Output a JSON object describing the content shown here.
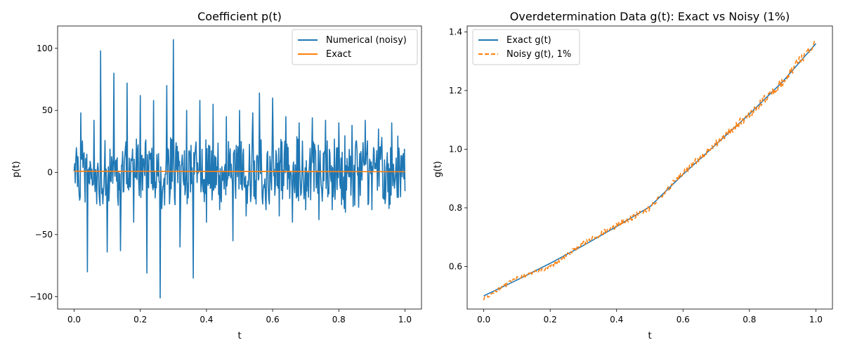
{
  "chart_data": [
    {
      "type": "line",
      "title": "Coefficient p(t)",
      "xlabel": "t",
      "ylabel": "p(t)",
      "xlim": [
        -0.05,
        1.05
      ],
      "ylim": [
        -110,
        118
      ],
      "xticks": [
        0.0,
        0.2,
        0.4,
        0.6,
        0.8,
        1.0
      ],
      "xtick_labels": [
        "0.0",
        "0.2",
        "0.4",
        "0.6",
        "0.8",
        "1.0"
      ],
      "yticks": [
        -100,
        -50,
        0,
        50,
        100
      ],
      "ytick_labels": [
        "−100",
        "−50",
        "0",
        "50",
        "100"
      ],
      "legend_position": "top-right",
      "series": [
        {
          "name": "Numerical (noisy)",
          "color": "#1f77b4",
          "style": "solid",
          "description_values": "noisy oscillation around 0, mostly within ±45, spikes up to 107 and down to -101",
          "x": [
            0.0,
            0.02,
            0.04,
            0.06,
            0.08,
            0.1,
            0.12,
            0.14,
            0.16,
            0.18,
            0.2,
            0.22,
            0.24,
            0.26,
            0.28,
            0.3,
            0.32,
            0.34,
            0.36,
            0.38,
            0.4,
            0.42,
            0.44,
            0.46,
            0.48,
            0.5,
            0.52,
            0.54,
            0.56,
            0.58,
            0.6,
            0.62,
            0.64,
            0.66,
            0.68,
            0.7,
            0.72,
            0.74,
            0.76,
            0.78,
            0.8,
            0.82,
            0.84,
            0.86,
            0.88,
            0.9,
            0.92,
            0.94,
            0.96,
            0.98,
            1.0
          ],
          "y": [
            1,
            48,
            -80,
            42,
            98,
            -64,
            80,
            -63,
            72,
            -40,
            62,
            -81,
            58,
            -101,
            70,
            107,
            -60,
            50,
            -85,
            58,
            -40,
            55,
            -30,
            45,
            -55,
            50,
            -35,
            48,
            64,
            -30,
            60,
            -35,
            45,
            -40,
            40,
            -30,
            44,
            -38,
            42,
            -30,
            40,
            -32,
            38,
            -28,
            42,
            -30,
            35,
            -25,
            40,
            -20,
            -15
          ]
        },
        {
          "name": "Exact",
          "color": "#ff7f0e",
          "style": "solid",
          "x": [
            0.0,
            0.25,
            0.5,
            0.75,
            1.0
          ],
          "y": [
            1.0,
            0.9,
            0.8,
            0.7,
            0.6
          ]
        }
      ]
    },
    {
      "type": "line",
      "title": "Overdetermination Data g(t): Exact vs Noisy (1%)",
      "xlabel": "t",
      "ylabel": "g(t)",
      "xlim": [
        -0.05,
        1.05
      ],
      "ylim": [
        0.455,
        1.42
      ],
      "xticks": [
        0.0,
        0.2,
        0.4,
        0.6,
        0.8,
        1.0
      ],
      "xtick_labels": [
        "0.0",
        "0.2",
        "0.4",
        "0.6",
        "0.8",
        "1.0"
      ],
      "yticks": [
        0.6,
        0.8,
        1.0,
        1.2,
        1.4
      ],
      "ytick_labels": [
        "0.6",
        "0.8",
        "1.0",
        "1.2",
        "1.4"
      ],
      "legend_position": "top-left",
      "series": [
        {
          "name": "Exact g(t)",
          "color": "#1f77b4",
          "style": "solid",
          "x": [
            0.0,
            0.1,
            0.2,
            0.3,
            0.4,
            0.5,
            0.6,
            0.7,
            0.8,
            0.9,
            1.0
          ],
          "y": [
            0.5,
            0.554,
            0.611,
            0.672,
            0.736,
            0.804,
            0.914,
            1.017,
            1.12,
            1.23,
            1.36
          ]
        },
        {
          "name": "Noisy g(t), 1%",
          "color": "#ff7f0e",
          "style": "dashed",
          "noise_fraction": 0.01,
          "x": [
            0.0,
            0.1,
            0.2,
            0.3,
            0.4,
            0.5,
            0.6,
            0.7,
            0.8,
            0.9,
            1.0
          ],
          "y": [
            0.49,
            0.56,
            0.6,
            0.68,
            0.74,
            0.8,
            0.92,
            1.02,
            1.12,
            1.23,
            1.37
          ]
        }
      ]
    }
  ]
}
